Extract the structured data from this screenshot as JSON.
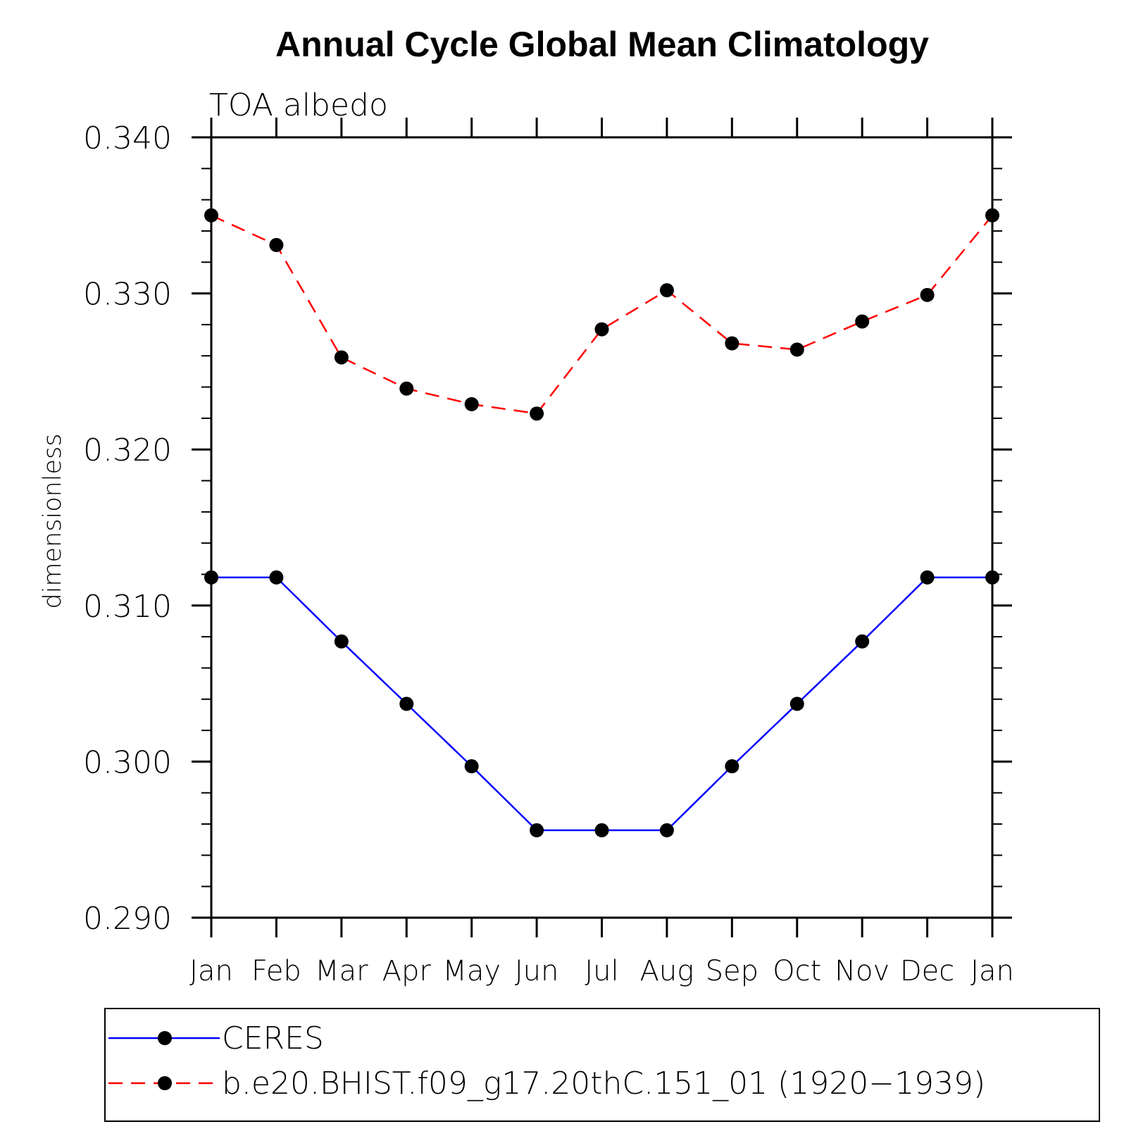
{
  "chart_data": {
    "type": "line",
    "title": "Annual Cycle Global Mean Climatology",
    "subtitle": "TOA albedo",
    "xlabel": "",
    "ylabel": "dimensionless",
    "categories": [
      "Jan",
      "Feb",
      "Mar",
      "Apr",
      "May",
      "Jun",
      "Jul",
      "Aug",
      "Sep",
      "Oct",
      "Nov",
      "Dec",
      "Jan"
    ],
    "ylim": [
      0.29,
      0.34
    ],
    "yticks": [
      "0.290",
      "0.300",
      "0.310",
      "0.320",
      "0.330",
      "0.340"
    ],
    "grid": false,
    "legend_position": "bottom",
    "series": [
      {
        "name": "CERES",
        "color": "#0000ff",
        "style": "solid",
        "marker": "circle",
        "values": [
          0.3118,
          0.3118,
          0.3077,
          0.3037,
          0.2997,
          0.2956,
          0.2956,
          0.2956,
          0.2997,
          0.3037,
          0.3077,
          0.3118,
          0.3118
        ]
      },
      {
        "name": "b.e20.BHIST.f09_g17.20thC.151_01 (1920−1939)",
        "color": "#ff0000",
        "style": "dashed",
        "marker": "circle",
        "values": [
          0.335,
          0.3331,
          0.3259,
          0.3239,
          0.3229,
          0.3223,
          0.3277,
          0.3302,
          0.3268,
          0.3264,
          0.3282,
          0.3299,
          0.335
        ]
      }
    ]
  }
}
